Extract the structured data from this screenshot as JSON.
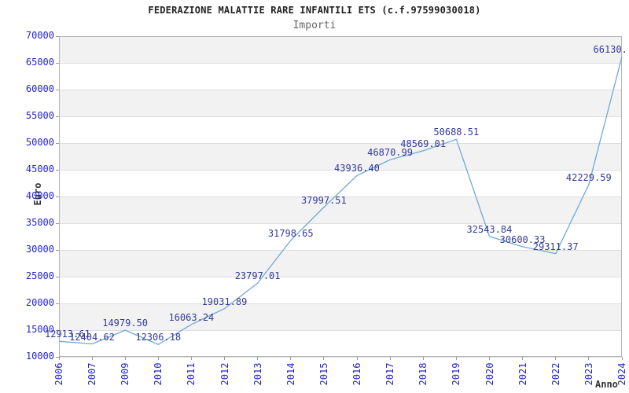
{
  "chart_data": {
    "type": "line",
    "title": "FEDERAZIONE MALATTIE RARE INFANTILI ETS (c.f.97599030018)",
    "subtitle": "Importi",
    "xlabel": "Anno",
    "ylabel": "Euro",
    "categories": [
      "2006",
      "2007",
      "2009",
      "2010",
      "2011",
      "2012",
      "2013",
      "2014",
      "2015",
      "2016",
      "2017",
      "2018",
      "2019",
      "2020",
      "2021",
      "2022",
      "2023",
      "2024"
    ],
    "values": [
      12913.61,
      12404.62,
      14979.5,
      12306.18,
      16063.24,
      19031.89,
      23797.01,
      31798.65,
      37997.51,
      43936.4,
      46870.99,
      48569.01,
      50688.51,
      32543.84,
      30600.33,
      29311.37,
      42229.59,
      66130
    ],
    "point_labels": [
      "12913.61",
      "12404.62",
      "14979.50",
      "12306.18",
      "16063.24",
      "19031.89",
      "23797.01",
      "31798.65",
      "37997.51",
      "43936.40",
      "46870.99",
      "48569.01",
      "50688.51",
      "32543.84",
      "30600.33",
      "29311.37",
      "42229.59",
      "66130."
    ],
    "ylim": [
      10000,
      70000
    ],
    "yticks": [
      10000,
      15000,
      20000,
      25000,
      30000,
      35000,
      40000,
      45000,
      50000,
      55000,
      60000,
      65000,
      70000
    ],
    "grid": true,
    "legend": "none",
    "colors": {
      "line": "#6fa8dc",
      "tick_label": "#2424cf",
      "point_label": "#333a99",
      "band": "#f2f2f2",
      "gridline": "#dedede",
      "border": "#b4b4b4",
      "tick_mark": "#999999",
      "title": "#222222",
      "subtitle": "#666666",
      "axis_title": "#333333"
    }
  }
}
